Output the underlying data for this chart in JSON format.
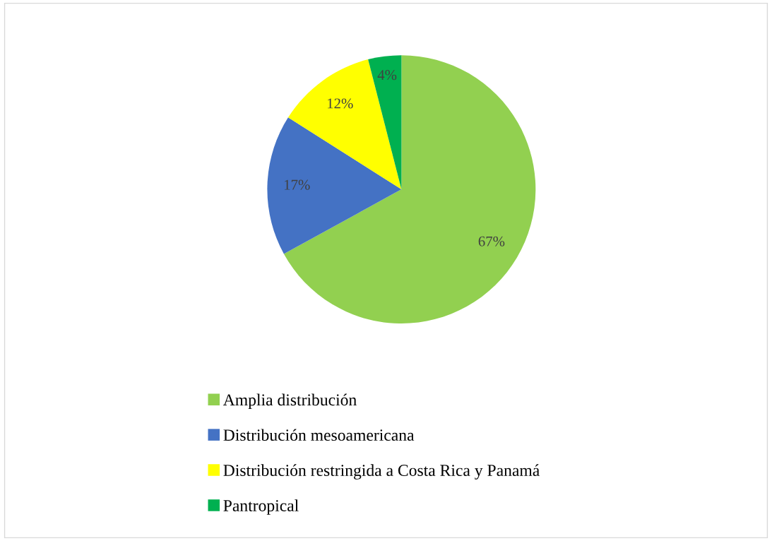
{
  "chart_data": {
    "type": "pie",
    "categories": [
      "Amplia distribución",
      "Distribución mesoamericana",
      "Distribución restringida a Costa Rica y Panamá",
      "Pantropical"
    ],
    "values": [
      67,
      17,
      12,
      4
    ],
    "colors": [
      "#92d050",
      "#4472c4",
      "#ffff00",
      "#00b050"
    ],
    "value_labels": [
      "67%",
      "17%",
      "12%",
      "4%"
    ],
    "legend": "bottom"
  }
}
